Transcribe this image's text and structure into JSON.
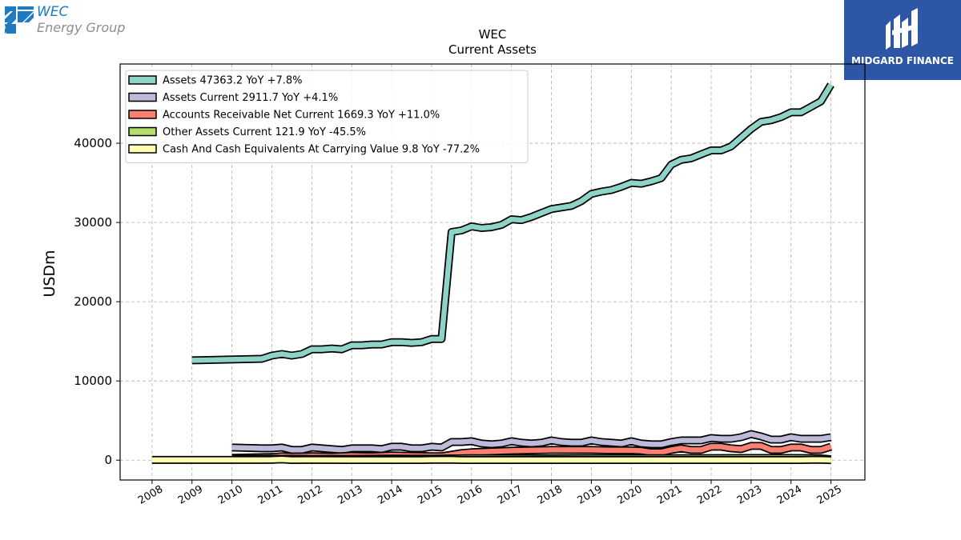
{
  "brand": {
    "wec_line1": "WEC",
    "wec_line2": "Energy Group",
    "midgard_name": "MIDGARD FINANCE"
  },
  "chart_data": {
    "type": "line",
    "title": "WEC",
    "subtitle": "Current  Assets",
    "ylabel": "USDm",
    "xlabel": "",
    "ylim": [
      -2500,
      50000
    ],
    "xlim": [
      2007.2,
      2025.85
    ],
    "yticks": [
      0,
      10000,
      20000,
      30000,
      40000
    ],
    "xticks": [
      "2008",
      "2009",
      "2010",
      "2011",
      "2012",
      "2013",
      "2014",
      "2015",
      "2016",
      "2017",
      "2018",
      "2019",
      "2020",
      "2021",
      "2022",
      "2023",
      "2024",
      "2025"
    ],
    "grid": true,
    "legend_position": "top-left",
    "series": [
      {
        "name": "Assets",
        "legend": "Assets  47363.2 YoY +7.8%",
        "color": "#8dd3c7",
        "x": [
          2009.0,
          2010.75,
          2011.0,
          2011.25,
          2011.5,
          2011.75,
          2012.0,
          2012.25,
          2012.5,
          2012.75,
          2013.0,
          2013.25,
          2013.5,
          2013.75,
          2014.0,
          2014.25,
          2014.5,
          2014.75,
          2015.0,
          2015.25,
          2015.5,
          2015.75,
          2016.0,
          2016.25,
          2016.5,
          2016.75,
          2017.0,
          2017.25,
          2017.5,
          2017.75,
          2018.0,
          2018.25,
          2018.5,
          2018.75,
          2019.0,
          2019.25,
          2019.5,
          2019.75,
          2020.0,
          2020.25,
          2020.5,
          2020.75,
          2021.0,
          2021.25,
          2021.5,
          2021.75,
          2022.0,
          2022.25,
          2022.5,
          2022.75,
          2023.0,
          2023.25,
          2023.5,
          2023.75,
          2024.0,
          2024.25,
          2024.5,
          2024.75,
          2025.0
        ],
        "values": [
          12600,
          12800,
          13200,
          13400,
          13200,
          13400,
          14000,
          14000,
          14100,
          14000,
          14500,
          14500,
          14600,
          14600,
          14900,
          14900,
          14800,
          14900,
          15300,
          15300,
          28800,
          29000,
          29500,
          29300,
          29400,
          29700,
          30400,
          30300,
          30700,
          31200,
          31700,
          31900,
          32100,
          32700,
          33600,
          33900,
          34100,
          34500,
          35000,
          34900,
          35200,
          35600,
          37300,
          37900,
          38100,
          38600,
          39100,
          39100,
          39600,
          40700,
          41800,
          42700,
          42900,
          43300,
          43900,
          43900,
          44600,
          45300,
          47400
        ]
      },
      {
        "name": "Assets Current",
        "legend": "Assets Current  2911.7 YoY +4.1%",
        "color": "#bebada",
        "x": [
          2010.0,
          2010.75,
          2011.0,
          2011.25,
          2011.5,
          2011.75,
          2012.0,
          2012.25,
          2012.5,
          2012.75,
          2013.0,
          2013.25,
          2013.5,
          2013.75,
          2014.0,
          2014.25,
          2014.5,
          2014.75,
          2015.0,
          2015.25,
          2015.5,
          2015.75,
          2016.0,
          2016.25,
          2016.5,
          2016.75,
          2017.0,
          2017.25,
          2017.5,
          2017.75,
          2018.0,
          2018.25,
          2018.5,
          2018.75,
          2019.0,
          2019.25,
          2019.5,
          2019.75,
          2020.0,
          2020.25,
          2020.5,
          2020.75,
          2021.0,
          2021.25,
          2021.5,
          2021.75,
          2022.0,
          2022.25,
          2022.5,
          2022.75,
          2023.0,
          2023.25,
          2023.5,
          2023.75,
          2024.0,
          2024.25,
          2024.5,
          2024.75,
          2025.0
        ],
        "values": [
          1600,
          1500,
          1500,
          1600,
          1300,
          1300,
          1600,
          1500,
          1400,
          1300,
          1500,
          1500,
          1500,
          1400,
          1700,
          1700,
          1500,
          1500,
          1700,
          1600,
          2300,
          2300,
          2400,
          2100,
          2000,
          2100,
          2400,
          2200,
          2100,
          2200,
          2500,
          2300,
          2200,
          2200,
          2500,
          2300,
          2200,
          2100,
          2400,
          2100,
          2000,
          2000,
          2300,
          2500,
          2500,
          2500,
          2800,
          2700,
          2700,
          2900,
          3300,
          3000,
          2600,
          2600,
          2900,
          2700,
          2700,
          2700,
          2900
        ]
      },
      {
        "name": "Accounts Receivable Net Current",
        "legend": "Accounts Receivable Net Current  1669.3 YoY +11.0%",
        "color": "#fb8072",
        "x": [
          2010.0,
          2011.0,
          2011.25,
          2011.5,
          2012.0,
          2012.5,
          2013.0,
          2013.5,
          2014.0,
          2014.5,
          2015.0,
          2015.25,
          2015.5,
          2015.75,
          2016.0,
          2016.5,
          2017.0,
          2017.5,
          2018.0,
          2018.5,
          2019.0,
          2019.5,
          2020.0,
          2020.25,
          2020.5,
          2020.75,
          2021.0,
          2021.25,
          2021.5,
          2021.75,
          2022.0,
          2022.25,
          2022.5,
          2022.75,
          2023.0,
          2023.25,
          2023.5,
          2023.75,
          2024.0,
          2024.25,
          2024.5,
          2024.75,
          2025.0
        ],
        "values": [
          300,
          400,
          500,
          450,
          500,
          450,
          550,
          500,
          600,
          550,
          500,
          500,
          700,
          900,
          1000,
          1100,
          1200,
          1250,
          1300,
          1300,
          1300,
          1250,
          1250,
          1200,
          1000,
          1000,
          1300,
          1500,
          1300,
          1300,
          1700,
          1700,
          1500,
          1400,
          1800,
          1800,
          1300,
          1300,
          1600,
          1600,
          1300,
          1300,
          1700
        ]
      },
      {
        "name": "Other Assets Current",
        "legend": "Other Assets Current  121.9 YoY -45.5%",
        "color": "#b3de69",
        "x": [
          2010.0,
          2011.0,
          2012.0,
          2013.0,
          2014.0,
          2015.0,
          2016.0,
          2017.0,
          2018.0,
          2019.0,
          2020.0,
          2021.0,
          2022.0,
          2023.0,
          2024.0,
          2024.5,
          2024.75,
          2025.0
        ],
        "values": [
          150,
          180,
          160,
          170,
          200,
          190,
          250,
          240,
          230,
          260,
          250,
          260,
          270,
          280,
          280,
          270,
          230,
          120
        ]
      },
      {
        "name": "Cash And Cash Equivalents At Carrying Value",
        "legend": "Cash And Cash Equivalents At Carrying Value  9.8 YoY -77.2%",
        "color": "#ffffb3",
        "x": [
          2008.0,
          2009.0,
          2010.0,
          2010.75,
          2011.0,
          2011.25,
          2011.5,
          2012.0,
          2013.0,
          2014.0,
          2014.75,
          2015.0,
          2015.5,
          2015.75,
          2016.0,
          2017.0,
          2018.0,
          2019.0,
          2020.0,
          2021.0,
          2022.0,
          2023.0,
          2024.0,
          2024.25,
          2024.5,
          2024.75,
          2025.0
        ],
        "values": [
          30,
          30,
          30,
          30,
          40,
          100,
          20,
          30,
          20,
          20,
          20,
          40,
          60,
          20,
          20,
          20,
          20,
          20,
          20,
          20,
          20,
          20,
          20,
          20,
          40,
          50,
          10
        ]
      }
    ]
  }
}
